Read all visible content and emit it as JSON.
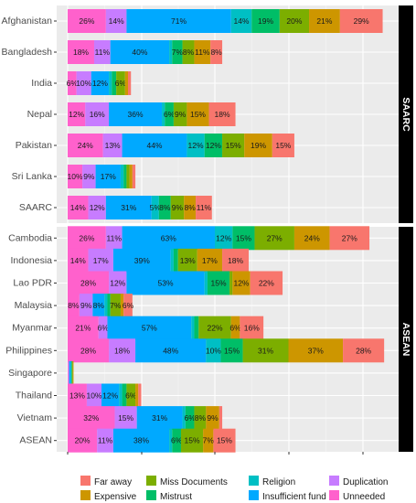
{
  "chart_data": {
    "type": "bar",
    "orientation": "horizontal",
    "stacked": true,
    "grid": true,
    "legend_position": "bottom",
    "segments_order": [
      "Unneeded",
      "Duplication",
      "Insufficient fund",
      "Religion",
      "Mistrust",
      "Miss Documents",
      "Expensive",
      "Far away"
    ],
    "colors": {
      "Far away": "#F8766D",
      "Expensive": "#CD9600",
      "Miss Documents": "#7CAE00",
      "Mistrust": "#00BE67",
      "Religion": "#00BFC4",
      "Insufficient fund": "#00A9FF",
      "Duplication": "#C77CFF",
      "Unneeded": "#FF61CC"
    },
    "panels": [
      {
        "strip": "SAARC",
        "categories": [
          "Afghanistan",
          "Bangladesh",
          "India",
          "Nepal",
          "Pakistan",
          "Sri Lanka",
          "SAARC"
        ],
        "series": [
          {
            "name": "Unneeded",
            "values": [
              26,
              18,
              6,
              12,
              24,
              10,
              14
            ],
            "labels": [
              "26%",
              "18%",
              "6%",
              "12%",
              "24%",
              "10%",
              "14%"
            ]
          },
          {
            "name": "Duplication",
            "values": [
              14,
              11,
              10,
              16,
              13,
              9,
              12
            ],
            "labels": [
              "14%",
              "11%",
              "10%",
              "16%",
              "13%",
              "9%",
              "12%"
            ]
          },
          {
            "name": "Insufficient fund",
            "values": [
              71,
              40,
              12,
              36,
              44,
              17,
              31
            ],
            "labels": [
              "71%",
              "40%",
              "12%",
              "36%",
              "44%",
              "17%",
              "31%"
            ]
          },
          {
            "name": "Religion",
            "values": [
              14,
              2,
              2,
              2,
              12,
              2,
              5
            ],
            "labels": [
              "14%",
              "",
              "",
              "",
              "12%",
              "",
              "5%"
            ]
          },
          {
            "name": "Mistrust",
            "values": [
              19,
              7,
              3,
              6,
              12,
              2,
              8
            ],
            "labels": [
              "19%",
              "7%",
              "",
              "6%",
              "12%",
              "",
              "8%"
            ]
          },
          {
            "name": "Miss Documents",
            "values": [
              20,
              8,
              6,
              9,
              15,
              2,
              9
            ],
            "labels": [
              "20%",
              "8%",
              "6%",
              "9%",
              "15%",
              "",
              "9%"
            ]
          },
          {
            "name": "Expensive",
            "values": [
              21,
              11,
              2,
              15,
              19,
              2,
              8
            ],
            "labels": [
              "21%",
              "11%",
              "",
              "15%",
              "19%",
              "",
              "8%"
            ]
          },
          {
            "name": "Far away",
            "values": [
              29,
              8,
              2,
              18,
              15,
              2,
              11
            ],
            "labels": [
              "29%",
              "8%",
              "",
              "18%",
              "15%",
              "",
              "11%"
            ]
          }
        ]
      },
      {
        "strip": "ASEAN",
        "categories": [
          "Cambodia",
          "Indonesia",
          "Lao PDR",
          "Malaysia",
          "Myanmar",
          "Philippines",
          "Singapore",
          "Thailand",
          "Vietnam",
          "ASEAN"
        ],
        "series": [
          {
            "name": "Unneeded",
            "values": [
              26,
              14,
              28,
              8,
              21,
              28,
              0.5,
              13,
              32,
              20
            ],
            "labels": [
              "26%",
              "14%",
              "28%",
              "8%",
              "21%",
              "28%",
              "",
              "13%",
              "32%",
              "20%"
            ]
          },
          {
            "name": "Duplication",
            "values": [
              11,
              17,
              12,
              9,
              6,
              18,
              0.5,
              10,
              15,
              11
            ],
            "labels": [
              "11%",
              "17%",
              "12%",
              "9%",
              "6%",
              "18%",
              "",
              "10%",
              "15%",
              "11%"
            ]
          },
          {
            "name": "Insufficient fund",
            "values": [
              63,
              39,
              53,
              8,
              57,
              48,
              1,
              12,
              31,
              38
            ],
            "labels": [
              "63%",
              "39%",
              "53%",
              "8%",
              "57%",
              "48%",
              "",
              "12%",
              "31%",
              "38%"
            ]
          },
          {
            "name": "Religion",
            "values": [
              12,
              2,
              2,
              2,
              2,
              10,
              0.5,
              2,
              2,
              2
            ],
            "labels": [
              "12%",
              "",
              "",
              "",
              "",
              "10%",
              "",
              "",
              "",
              ""
            ]
          },
          {
            "name": "Mistrust",
            "values": [
              15,
              3,
              15,
              2,
              3,
              15,
              0.5,
              3,
              6,
              6
            ],
            "labels": [
              "15%",
              "",
              "15%",
              "",
              "",
              "15%",
              "",
              "",
              "6%",
              "6%"
            ]
          },
          {
            "name": "Miss Documents",
            "values": [
              27,
              13,
              2,
              7,
              22,
              31,
              0.5,
              6,
              8,
              15
            ],
            "labels": [
              "27%",
              "13%",
              "",
              "7%",
              "22%",
              "31%",
              "",
              "6%",
              "8%",
              "15%"
            ]
          },
          {
            "name": "Expensive",
            "values": [
              24,
              17,
              12,
              2,
              6,
              37,
              0.5,
              2,
              9,
              7
            ],
            "labels": [
              "24%",
              "17%",
              "12%",
              "",
              "6%",
              "37%",
              "",
              "",
              "9%",
              "7%"
            ]
          },
          {
            "name": "Far away",
            "values": [
              27,
              18,
              22,
              6,
              16,
              28,
              0,
              2,
              2,
              15
            ],
            "labels": [
              "27%",
              "18%",
              "22%",
              "6%",
              "16%",
              "28%",
              "",
              "",
              "",
              "15%"
            ]
          }
        ]
      }
    ]
  },
  "legend": {
    "items": [
      {
        "label": "Far away",
        "color": "#F8766D"
      },
      {
        "label": "Miss Documents",
        "color": "#7CAE00"
      },
      {
        "label": "Religion",
        "color": "#00BFC4"
      },
      {
        "label": "Duplication",
        "color": "#C77CFF"
      },
      {
        "label": "Expensive",
        "color": "#CD9600"
      },
      {
        "label": "Mistrust",
        "color": "#00BE67"
      },
      {
        "label": "Insufficient fund",
        "color": "#00A9FF"
      },
      {
        "label": "Unneeded",
        "color": "#FF61CC"
      }
    ]
  }
}
